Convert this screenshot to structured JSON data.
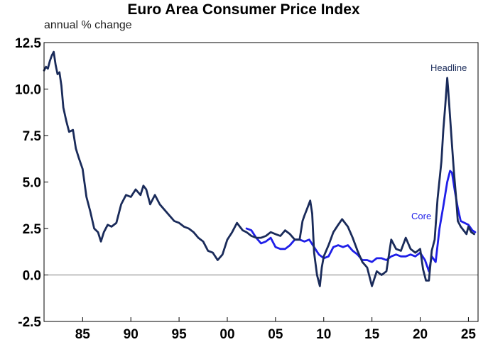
{
  "chart_data": {
    "type": "line",
    "title": "Euro Area Consumer Price Index",
    "ylabel": "annual % change",
    "xlabel": "",
    "xlim": [
      1981,
      2026
    ],
    "ylim": [
      -2.5,
      12.5
    ],
    "yticks": [
      "12.5",
      "10.0",
      "7.5",
      "5.0",
      "2.5",
      "0.0",
      "-2.5"
    ],
    "ytick_values": [
      12.5,
      10.0,
      7.5,
      5.0,
      2.5,
      0.0,
      -2.5
    ],
    "xticks": [
      "85",
      "90",
      "95",
      "00",
      "05",
      "10",
      "15",
      "20",
      "25"
    ],
    "xtick_values": [
      1985,
      1990,
      1995,
      2000,
      2005,
      2010,
      2015,
      2020,
      2025
    ],
    "series": [
      {
        "name": "Headline",
        "color": "#1a2b5a",
        "x": [
          1981.0,
          1981.2,
          1981.4,
          1981.6,
          1981.8,
          1982.0,
          1982.2,
          1982.4,
          1982.6,
          1982.8,
          1983.0,
          1983.3,
          1983.6,
          1984.0,
          1984.3,
          1984.6,
          1985.0,
          1985.4,
          1985.8,
          1986.2,
          1986.6,
          1986.9,
          1987.2,
          1987.6,
          1988.0,
          1988.5,
          1989.0,
          1989.5,
          1990.0,
          1990.5,
          1991.0,
          1991.3,
          1991.6,
          1992.0,
          1992.5,
          1993.0,
          1993.5,
          1994.0,
          1994.5,
          1995.0,
          1995.5,
          1996.0,
          1996.5,
          1997.0,
          1997.5,
          1998.0,
          1998.5,
          1999.0,
          1999.5,
          2000.0,
          2000.5,
          2001.0,
          2001.3,
          2001.6,
          2002.0,
          2002.5,
          2003.0,
          2003.5,
          2004.0,
          2004.5,
          2005.0,
          2005.5,
          2006.0,
          2006.5,
          2007.0,
          2007.5,
          2007.8,
          2008.0,
          2008.3,
          2008.6,
          2008.8,
          2009.0,
          2009.3,
          2009.6,
          2009.8,
          2010.0,
          2010.5,
          2011.0,
          2011.5,
          2011.9,
          2012.5,
          2013.0,
          2013.5,
          2014.0,
          2014.5,
          2015.0,
          2015.5,
          2016.0,
          2016.5,
          2017.0,
          2017.5,
          2018.0,
          2018.5,
          2019.0,
          2019.5,
          2020.0,
          2020.3,
          2020.6,
          2020.9,
          2021.2,
          2021.5,
          2021.8,
          2022.0,
          2022.2,
          2022.4,
          2022.6,
          2022.8,
          2022.9,
          2023.1,
          2023.3,
          2023.5,
          2023.7,
          2023.9,
          2024.2,
          2024.5,
          2024.8,
          2025.0,
          2025.3,
          2025.6
        ],
        "values": [
          11.0,
          11.2,
          11.1,
          11.5,
          11.8,
          12.0,
          11.3,
          10.8,
          10.9,
          10.2,
          9.0,
          8.3,
          7.7,
          7.8,
          6.8,
          6.3,
          5.7,
          4.2,
          3.4,
          2.5,
          2.3,
          1.8,
          2.3,
          2.7,
          2.6,
          2.8,
          3.8,
          4.3,
          4.2,
          4.6,
          4.3,
          4.8,
          4.6,
          3.8,
          4.3,
          3.8,
          3.5,
          3.2,
          2.9,
          2.8,
          2.6,
          2.5,
          2.3,
          2.0,
          1.8,
          1.3,
          1.2,
          0.8,
          1.1,
          1.9,
          2.3,
          2.8,
          2.6,
          2.4,
          2.3,
          2.1,
          2.0,
          2.0,
          2.1,
          2.3,
          2.2,
          2.1,
          2.4,
          2.2,
          1.9,
          1.9,
          2.9,
          3.2,
          3.6,
          4.0,
          3.3,
          1.2,
          0.0,
          -0.6,
          0.4,
          1.0,
          1.6,
          2.3,
          2.7,
          3.0,
          2.6,
          2.0,
          1.3,
          0.7,
          0.4,
          -0.6,
          0.2,
          0.0,
          0.2,
          1.9,
          1.4,
          1.3,
          2.0,
          1.4,
          1.2,
          1.4,
          0.3,
          -0.3,
          -0.3,
          1.3,
          1.9,
          4.1,
          5.1,
          6.1,
          7.8,
          9.1,
          10.6,
          10.0,
          8.5,
          7.0,
          5.5,
          4.3,
          2.9,
          2.6,
          2.4,
          2.2,
          2.6,
          2.3,
          2.2
        ],
        "label": "Headline"
      },
      {
        "name": "Core",
        "color": "#1f1fe8",
        "x": [
          2002.0,
          2002.5,
          2003.0,
          2003.5,
          2004.0,
          2004.5,
          2005.0,
          2005.5,
          2006.0,
          2006.5,
          2007.0,
          2007.5,
          2008.0,
          2008.5,
          2009.0,
          2009.5,
          2010.0,
          2010.5,
          2011.0,
          2011.5,
          2012.0,
          2012.5,
          2013.0,
          2013.5,
          2014.0,
          2014.5,
          2015.0,
          2015.5,
          2016.0,
          2016.5,
          2017.0,
          2017.5,
          2018.0,
          2018.5,
          2019.0,
          2019.5,
          2020.0,
          2020.5,
          2020.9,
          2021.2,
          2021.6,
          2022.0,
          2022.4,
          2022.8,
          2023.1,
          2023.3,
          2023.6,
          2023.9,
          2024.2,
          2024.6,
          2025.0,
          2025.4,
          2025.7
        ],
        "values": [
          2.5,
          2.4,
          2.0,
          1.7,
          1.8,
          2.0,
          1.5,
          1.4,
          1.4,
          1.6,
          1.9,
          1.9,
          1.8,
          1.9,
          1.5,
          1.1,
          0.9,
          1.0,
          1.5,
          1.6,
          1.5,
          1.6,
          1.3,
          1.1,
          0.8,
          0.8,
          0.7,
          0.9,
          0.9,
          0.8,
          1.0,
          1.1,
          1.0,
          1.0,
          1.1,
          1.0,
          1.2,
          0.8,
          0.2,
          1.0,
          0.7,
          2.5,
          3.7,
          5.0,
          5.6,
          5.5,
          4.5,
          3.6,
          2.9,
          2.8,
          2.7,
          2.4,
          2.3
        ],
        "label": "Core"
      }
    ]
  }
}
